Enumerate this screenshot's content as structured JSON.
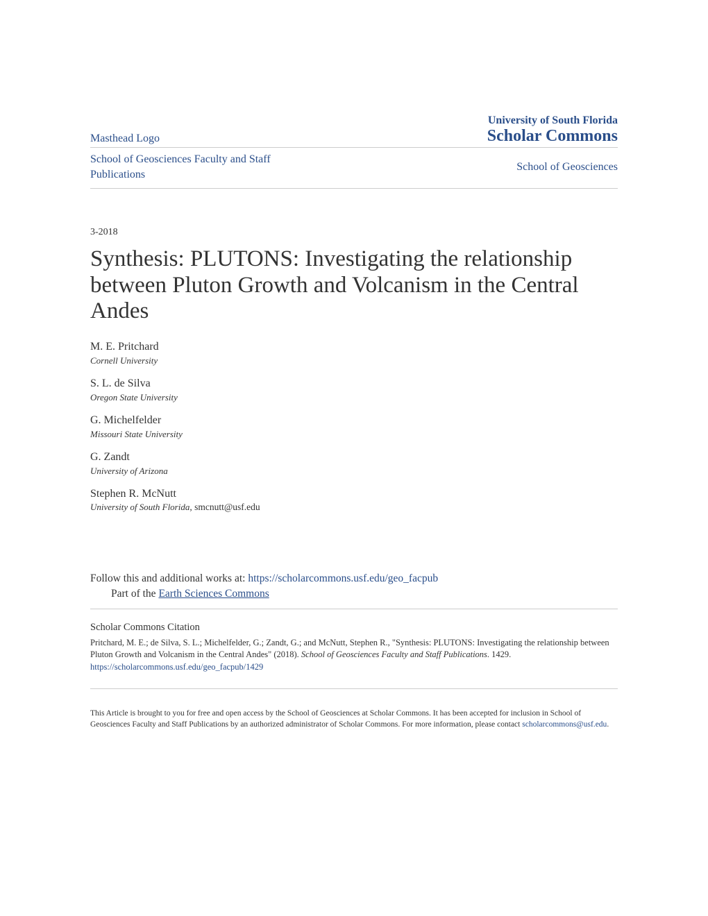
{
  "header": {
    "masthead": "Masthead Logo",
    "institution": "University of South Florida",
    "repository": "Scholar Commons"
  },
  "dept": {
    "left": "School of Geosciences Faculty and Staff Publications",
    "right": "School of Geosciences"
  },
  "date": "3-2018",
  "title": "Synthesis: PLUTONS: Investigating the relationship between Pluton Growth and Volcanism in the Central Andes",
  "authors": [
    {
      "name": "M. E. Pritchard",
      "affil": "Cornell University",
      "email": ""
    },
    {
      "name": "S. L. de Silva",
      "affil": "Oregon State University",
      "email": ""
    },
    {
      "name": "G. Michelfelder",
      "affil": "Missouri State University",
      "email": ""
    },
    {
      "name": "G. Zandt",
      "affil": "University of Arizona",
      "email": ""
    },
    {
      "name": "Stephen R. McNutt",
      "affil": "University of South Florida",
      "email": ", smcnutt@usf.edu"
    }
  ],
  "follow": {
    "label": "Follow this and additional works at: ",
    "url": "https://scholarcommons.usf.edu/geo_facpub",
    "part_label": "Part of the ",
    "part_link": "Earth Sciences Commons"
  },
  "citation": {
    "heading": "Scholar Commons Citation",
    "text_pre": "Pritchard, M. E.; de Silva, S. L.; Michelfelder, G.; Zandt, G.; and McNutt, Stephen R., \"Synthesis: PLUTONS: Investigating the relationship between Pluton Growth and Volcanism in the Central Andes\" (2018). ",
    "text_ital": "School of Geosciences Faculty and Staff Publications",
    "text_post": ". 1429.",
    "url": "https://scholarcommons.usf.edu/geo_facpub/1429"
  },
  "footer": {
    "text": "This Article is brought to you for free and open access by the School of Geosciences at Scholar Commons. It has been accepted for inclusion in School of Geosciences Faculty and Staff Publications by an authorized administrator of Scholar Commons. For more information, please contact ",
    "email": "scholarcommons@usf.edu",
    "period": "."
  },
  "colors": {
    "link": "#2a4e8a",
    "text": "#333333",
    "divider": "#cccccc",
    "background": "#ffffff"
  }
}
